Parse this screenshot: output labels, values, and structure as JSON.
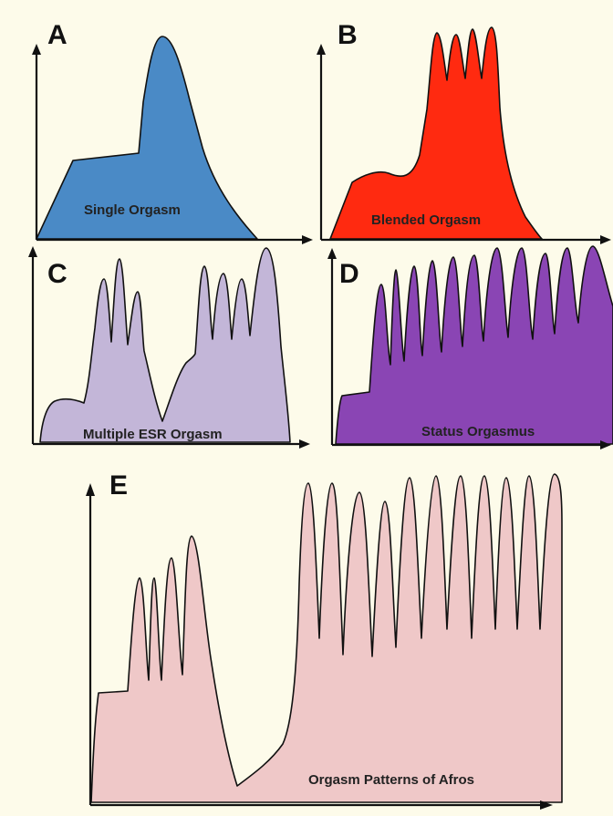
{
  "figure": {
    "background": "#fdfbea",
    "panels": [
      {
        "id": "A",
        "letter": "A",
        "caption": "Single Orgasm",
        "fill": "#4a8ac6"
      },
      {
        "id": "B",
        "letter": "B",
        "caption": "Blended Orgasm",
        "fill": "#ff2a10"
      },
      {
        "id": "C",
        "letter": "C",
        "caption": "Multiple ESR Orgasm",
        "fill": "#c3b6d8"
      },
      {
        "id": "D",
        "letter": "D",
        "caption": "Status Orgasmus",
        "fill": "#8a45b4"
      },
      {
        "id": "E",
        "letter": "E",
        "caption": "Orgasm Patterns of Afros",
        "fill": "#efc8c8"
      }
    ]
  }
}
